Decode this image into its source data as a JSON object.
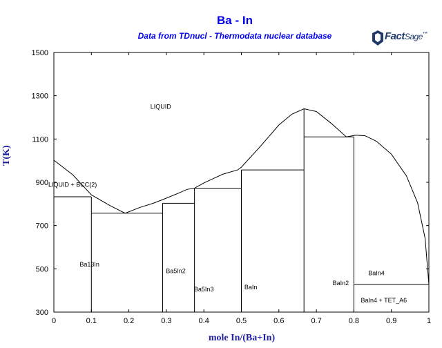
{
  "chart_data": {
    "type": "line",
    "title": "Ba - In",
    "subtitle": "Data from TDnucl - Thermodata nuclear database",
    "xlabel": "mole In/(Ba+In)",
    "ylabel": "T(K)",
    "xlim": [
      0,
      1
    ],
    "ylim": [
      300,
      1500
    ],
    "x_ticks": [
      "0",
      "0.1",
      "0.2",
      "0.3",
      "0.4",
      "0.5",
      "0.6",
      "0.7",
      "0.8",
      "0.9",
      "1"
    ],
    "x_tick_values": [
      0,
      0.1,
      0.2,
      0.3,
      0.4,
      0.5,
      0.6,
      0.7,
      0.8,
      0.9,
      1.0
    ],
    "y_ticks": [
      "300",
      "500",
      "700",
      "900",
      "1100",
      "1300",
      "1500"
    ],
    "y_tick_values": [
      300,
      500,
      700,
      900,
      1100,
      1300,
      1500
    ],
    "grid": false,
    "liquidus": [
      [
        0.0,
        1002
      ],
      [
        0.05,
        935
      ],
      [
        0.1,
        842
      ],
      [
        0.15,
        792
      ],
      [
        0.19,
        757
      ],
      [
        0.23,
        784
      ],
      [
        0.265,
        803
      ],
      [
        0.29,
        820
      ],
      [
        0.33,
        848
      ],
      [
        0.355,
        867
      ],
      [
        0.375,
        873
      ],
      [
        0.4,
        897
      ],
      [
        0.45,
        937
      ],
      [
        0.49,
        957
      ],
      [
        0.5,
        970
      ],
      [
        0.55,
        1065
      ],
      [
        0.6,
        1165
      ],
      [
        0.635,
        1215
      ],
      [
        0.667,
        1240
      ],
      [
        0.7,
        1227
      ],
      [
        0.74,
        1172
      ],
      [
        0.78,
        1110
      ],
      [
        0.805,
        1118
      ],
      [
        0.83,
        1115
      ],
      [
        0.86,
        1090
      ],
      [
        0.9,
        1030
      ],
      [
        0.94,
        930
      ],
      [
        0.97,
        805
      ],
      [
        0.99,
        640
      ],
      [
        1.0,
        428
      ]
    ],
    "horizontal_lines": [
      {
        "x": [
          0.0,
          0.1
        ],
        "y": 833
      },
      {
        "x": [
          0.1,
          0.29
        ],
        "y": 757
      },
      {
        "x": [
          0.29,
          0.375
        ],
        "y": 803
      },
      {
        "x": [
          0.375,
          0.5
        ],
        "y": 873
      },
      {
        "x": [
          0.5,
          0.667
        ],
        "y": 957
      },
      {
        "x": [
          0.667,
          0.8
        ],
        "y": 1110
      },
      {
        "x": [
          0.8,
          1.0
        ],
        "y": 428
      }
    ],
    "vertical_lines": [
      {
        "x": 0.1,
        "y": [
          300,
          833
        ]
      },
      {
        "x": 0.29,
        "y": [
          300,
          803
        ]
      },
      {
        "x": 0.375,
        "y": [
          300,
          873
        ]
      },
      {
        "x": 0.5,
        "y": [
          300,
          957
        ]
      },
      {
        "x": 0.667,
        "y": [
          300,
          1240
        ]
      },
      {
        "x": 0.8,
        "y": [
          300,
          1110
        ]
      }
    ],
    "solvus": [
      [
        0.0,
        833
      ],
      [
        0.0,
        300
      ]
    ],
    "annotations": [
      {
        "text": "LIQUID",
        "x": 0.285,
        "y": 1240
      },
      {
        "text": "LIQUID + BCC(2)",
        "x": 0.05,
        "y": 880
      },
      {
        "text": "Ba13In",
        "x": 0.095,
        "y": 510
      },
      {
        "text": "Ba5In2",
        "x": 0.325,
        "y": 480
      },
      {
        "text": "Ba5In3",
        "x": 0.4,
        "y": 395
      },
      {
        "text": "BaIn",
        "x": 0.525,
        "y": 405
      },
      {
        "text": "BaIn2",
        "x": 0.765,
        "y": 425
      },
      {
        "text": "BaIn4",
        "x": 0.86,
        "y": 470
      },
      {
        "text": "BaIn4 + TET_A6",
        "x": 0.88,
        "y": 345
      }
    ]
  },
  "logo": {
    "text_fact": "Fact",
    "text_sage": "Sage",
    "tm": "™"
  }
}
